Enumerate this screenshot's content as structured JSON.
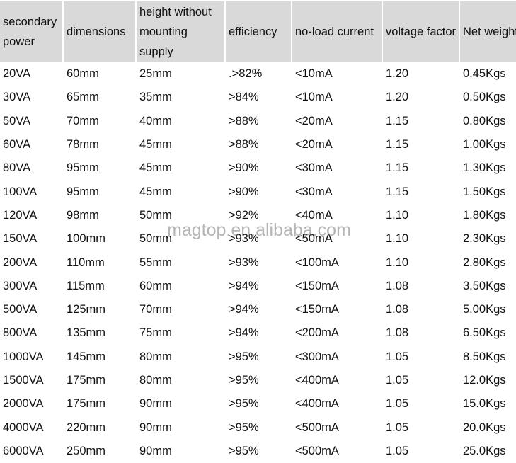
{
  "headers": [
    "secondary power",
    "dimensions",
    "height without mounting supply",
    "efficiency",
    "no-load current",
    "voltage factor",
    "Net weight"
  ],
  "rows": [
    [
      "20VA",
      "60mm",
      "25mm",
      ".>82%",
      "<10mA",
      "1.20",
      "0.45Kgs"
    ],
    [
      "30VA",
      "65mm",
      "35mm",
      ">84%",
      "<10mA",
      "1.20",
      "0.50Kgs"
    ],
    [
      "50VA",
      "70mm",
      "40mm",
      ">88%",
      "<20mA",
      "1.15",
      "0.80Kgs"
    ],
    [
      "60VA",
      "78mm",
      "45mm",
      ">88%",
      "<20mA",
      "1.15",
      "1.00Kgs"
    ],
    [
      "80VA",
      "95mm",
      "45mm",
      ">90%",
      "<30mA",
      "1.15",
      "1.30Kgs"
    ],
    [
      "100VA",
      "95mm",
      "45mm",
      ">90%",
      "<30mA",
      "1.15",
      "1.50Kgs"
    ],
    [
      "120VA",
      "98mm",
      "50mm",
      ">92%",
      "<40mA",
      "1.10",
      "1.80Kgs"
    ],
    [
      "150VA",
      "100mm",
      "50mm",
      ">93%",
      "<50mA",
      "1.10",
      "2.30Kgs"
    ],
    [
      "200VA",
      "110mm",
      "55mm",
      ">93%",
      "<100mA",
      "1.10",
      "2.80Kgs"
    ],
    [
      "300VA",
      "115mm",
      "60mm",
      ">94%",
      "<150mA",
      "1.08",
      "3.50Kgs"
    ],
    [
      "500VA",
      "125mm",
      "70mm",
      ">94%",
      "<150mA",
      "1.08",
      "5.00Kgs"
    ],
    [
      "800VA",
      "135mm",
      "75mm",
      ">94%",
      "<200mA",
      "1.08",
      "6.50Kgs"
    ],
    [
      "1000VA",
      "145mm",
      "80mm",
      ">95%",
      "<300mA",
      "1.05",
      "8.50Kgs"
    ],
    [
      "1500VA",
      "175mm",
      "80mm",
      ">95%",
      "<400mA",
      "1.05",
      "12.0Kgs"
    ],
    [
      "2000VA",
      "175mm",
      "90mm",
      ">95%",
      "<400mA",
      "1.05",
      "15.0Kgs"
    ],
    [
      "4000VA",
      "220mm",
      "90mm",
      ">95%",
      "<500mA",
      "1.05",
      "20.0Kgs"
    ],
    [
      "6000VA",
      "250mm",
      "90mm",
      ">95%",
      "<500mA",
      "1.05",
      "25.0Kgs"
    ]
  ],
  "watermark": "magtop.en.alibaba.com"
}
